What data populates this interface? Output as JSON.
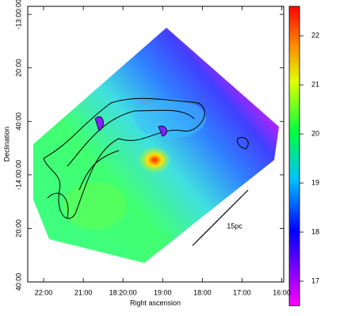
{
  "chart_data": {
    "type": "image",
    "x_label": "Right ascension",
    "y_label": "Declination",
    "xlim": [
      22.4,
      15.95
    ],
    "xticks": [
      {
        "value": 22,
        "label": "22:00"
      },
      {
        "value": 21,
        "label": "21:00"
      },
      {
        "value": 20,
        "label": "18:20:00"
      },
      {
        "value": 19,
        "label": "19:00"
      },
      {
        "value": 18,
        "label": "18:00"
      },
      {
        "value": 17,
        "label": "17:00"
      },
      {
        "value": 16,
        "label": "16:00"
      }
    ],
    "ylim": [
      -880,
      -777
    ],
    "yticks": [
      {
        "value": -780,
        "label": "-13:00:00"
      },
      {
        "value": -800,
        "label": "20:00"
      },
      {
        "value": -820,
        "label": "40:00"
      },
      {
        "value": -840,
        "label": "-14:00:00"
      },
      {
        "value": -860,
        "label": "20:00"
      },
      {
        "value": -880,
        "label": "40:00"
      }
    ],
    "colorbar": {
      "clim": [
        16.5,
        22.6
      ],
      "ticks": [
        17,
        18,
        19,
        20,
        21,
        22
      ]
    },
    "annotation": "15pc"
  }
}
